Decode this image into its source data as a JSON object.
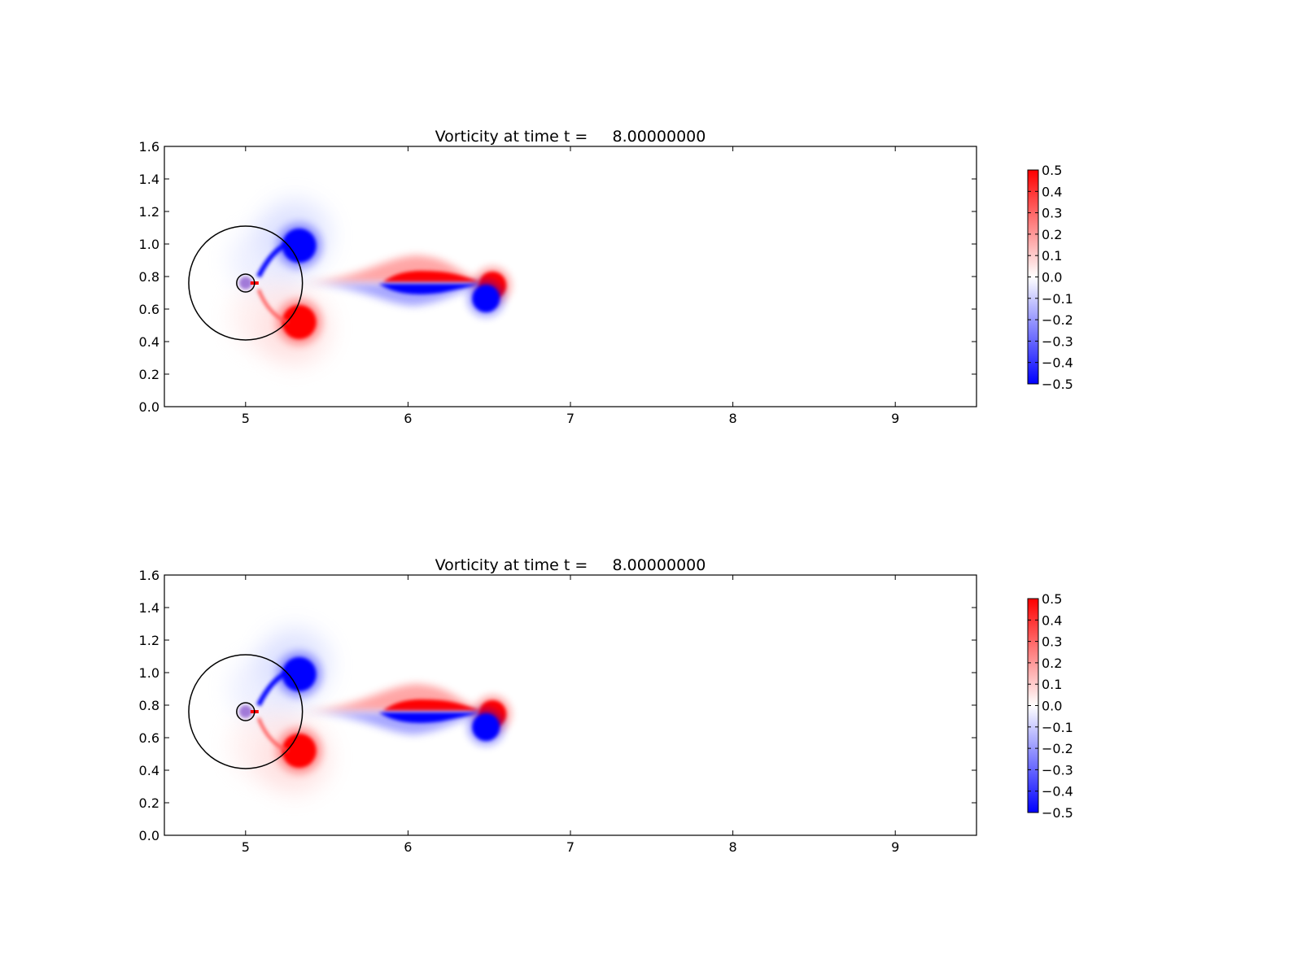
{
  "chart_data": [
    {
      "type": "heatmap",
      "title": "Vorticity at time t =     8.00000000",
      "xlabel": "",
      "ylabel": "",
      "xlim": [
        4.5,
        9.5
      ],
      "ylim": [
        0.0,
        1.6
      ],
      "xticks": [
        "5",
        "6",
        "7",
        "8",
        "9"
      ],
      "xtick_values": [
        5,
        6,
        7,
        8,
        9
      ],
      "yticks": [
        "0.0",
        "0.2",
        "0.4",
        "0.6",
        "0.8",
        "1.0",
        "1.2",
        "1.4",
        "1.6"
      ],
      "ytick_values": [
        0.0,
        0.2,
        0.4,
        0.6,
        0.8,
        1.0,
        1.2,
        1.4,
        1.6
      ],
      "grid": false,
      "colormap": "bwr",
      "color_low": "#0000ff",
      "color_mid": "#ffffff",
      "color_high": "#ff0000",
      "colorbar": {
        "range": [
          -0.5,
          0.5
        ],
        "ticks": [
          "0.5",
          "0.4",
          "0.3",
          "0.2",
          "0.1",
          "0.0",
          "−0.1",
          "−0.2",
          "−0.3",
          "−0.4",
          "−0.5"
        ],
        "tick_values": [
          0.5,
          0.4,
          0.3,
          0.2,
          0.1,
          0.0,
          -0.1,
          -0.2,
          -0.3,
          -0.4,
          -0.5
        ]
      },
      "circles": [
        {
          "center": [
            5.0,
            0.76
          ],
          "radius": 0.35
        },
        {
          "center": [
            5.0,
            0.76
          ],
          "radius": 0.055
        }
      ],
      "vortices": [
        {
          "x": 5.33,
          "y": 0.99,
          "value": -0.5
        },
        {
          "x": 5.33,
          "y": 0.52,
          "value": 0.5
        },
        {
          "x": 6.52,
          "y": 0.74,
          "value": 0.5
        },
        {
          "x": 6.48,
          "y": 0.66,
          "value": -0.5
        },
        {
          "x": 6.1,
          "y": 0.8,
          "value": 0.5
        },
        {
          "x": 6.05,
          "y": 0.7,
          "value": -0.5
        }
      ]
    },
    {
      "type": "heatmap",
      "title": "Vorticity at time t =     8.00000000",
      "xlabel": "",
      "ylabel": "",
      "xlim": [
        4.5,
        9.5
      ],
      "ylim": [
        0.0,
        1.6
      ],
      "xticks": [
        "5",
        "6",
        "7",
        "8",
        "9"
      ],
      "xtick_values": [
        5,
        6,
        7,
        8,
        9
      ],
      "yticks": [
        "0.0",
        "0.2",
        "0.4",
        "0.6",
        "0.8",
        "1.0",
        "1.2",
        "1.4",
        "1.6"
      ],
      "ytick_values": [
        0.0,
        0.2,
        0.4,
        0.6,
        0.8,
        1.0,
        1.2,
        1.4,
        1.6
      ],
      "grid": false,
      "colormap": "bwr",
      "color_low": "#0000ff",
      "color_mid": "#ffffff",
      "color_high": "#ff0000",
      "colorbar": {
        "range": [
          -0.5,
          0.5
        ],
        "ticks": [
          "0.5",
          "0.4",
          "0.3",
          "0.2",
          "0.1",
          "0.0",
          "−0.1",
          "−0.2",
          "−0.3",
          "−0.4",
          "−0.5"
        ],
        "tick_values": [
          0.5,
          0.4,
          0.3,
          0.2,
          0.1,
          0.0,
          -0.1,
          -0.2,
          -0.3,
          -0.4,
          -0.5
        ]
      },
      "circles": [
        {
          "center": [
            5.0,
            0.76
          ],
          "radius": 0.35
        },
        {
          "center": [
            5.0,
            0.76
          ],
          "radius": 0.055
        }
      ],
      "vortices": [
        {
          "x": 5.33,
          "y": 0.99,
          "value": -0.5
        },
        {
          "x": 5.33,
          "y": 0.52,
          "value": 0.5
        },
        {
          "x": 6.52,
          "y": 0.74,
          "value": 0.5
        },
        {
          "x": 6.48,
          "y": 0.66,
          "value": -0.5
        },
        {
          "x": 6.1,
          "y": 0.8,
          "value": 0.5
        },
        {
          "x": 6.05,
          "y": 0.7,
          "value": -0.5
        }
      ]
    }
  ]
}
